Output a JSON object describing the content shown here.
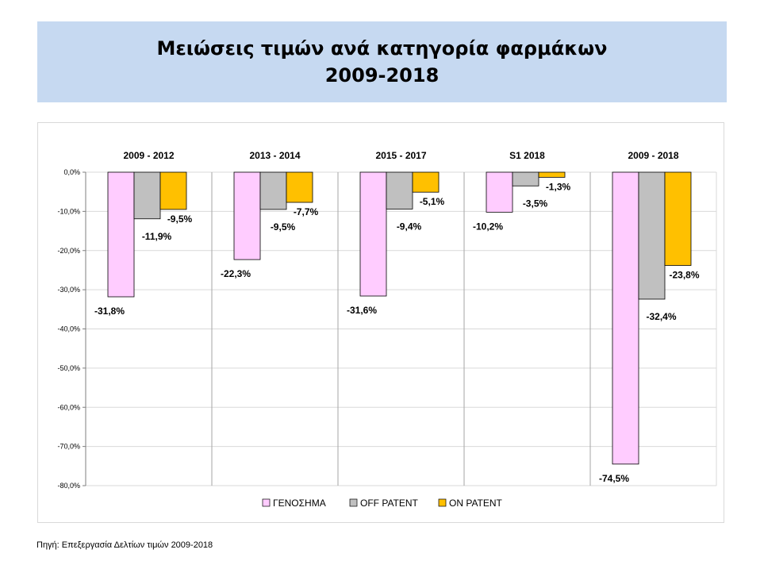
{
  "title": {
    "line1": "Μειώσεις τιμών ανά κατηγορία φαρμάκων",
    "line2": "2009-2018"
  },
  "source": "Πηγή: Επεξεργασία Δελτίων τιμών 2009-2018",
  "colors": {
    "series": [
      "#ffccff",
      "#c0c0c0",
      "#ffc000"
    ]
  },
  "chart_data": {
    "type": "bar",
    "title": "Μειώσεις τιμών ανά κατηγορία φαρμάκων 2009-2018",
    "categories": [
      "2009 - 2012",
      "2013 - 2014",
      "2015 - 2017",
      "S1 2018",
      "2009 - 2018"
    ],
    "series": [
      {
        "name": "ΓΕΝΟΣΗΜΑ",
        "values": [
          -31.8,
          -22.3,
          -31.6,
          -10.2,
          -74.5
        ],
        "labels": [
          "-31,8%",
          "-22,3%",
          "-31,6%",
          "-10,2%",
          "-74,5%"
        ]
      },
      {
        "name": "OFF PATENT",
        "values": [
          -11.9,
          -9.5,
          -9.4,
          -3.5,
          -32.4
        ],
        "labels": [
          "-11,9%",
          "-9,5%",
          "-9,4%",
          "-3,5%",
          "-32,4%"
        ]
      },
      {
        "name": "ON PATENT",
        "values": [
          -9.5,
          -7.7,
          -5.1,
          -1.3,
          -23.8
        ],
        "labels": [
          "-9,5%",
          "-7,7%",
          "-5,1%",
          "-1,3%",
          "-23,8%"
        ]
      }
    ],
    "ylim": [
      -80,
      0
    ],
    "yticks": [
      0,
      -10,
      -20,
      -30,
      -40,
      -50,
      -60,
      -70,
      -80
    ],
    "ytick_labels": [
      "0,0%",
      "-10,0%",
      "-20,0%",
      "-30,0%",
      "-40,0%",
      "-50,0%",
      "-60,0%",
      "-70,0%",
      "-80,0%"
    ],
    "grid": true,
    "legend": "bottom"
  }
}
